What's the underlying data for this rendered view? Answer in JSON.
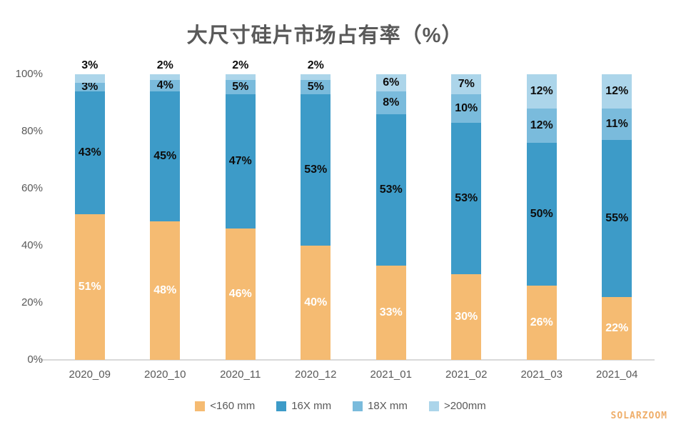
{
  "title": "大尺寸硅片市场占有率（%）",
  "watermark": "SOLARZOOM",
  "chart_data": {
    "type": "bar",
    "stacked": true,
    "title": "大尺寸硅片市场占有率（%）",
    "categories": [
      "2020_09",
      "2020_10",
      "2020_11",
      "2020_12",
      "2021_01",
      "2021_02",
      "2021_03",
      "2021_04"
    ],
    "series": [
      {
        "name": "<160 mm",
        "color": "#F5BB72",
        "label_color": "#FFFFFF",
        "values": [
          51,
          48,
          46,
          40,
          33,
          30,
          26,
          22
        ]
      },
      {
        "name": "16X mm",
        "color": "#3D9BC8",
        "label_color": "#0D0D0D",
        "values": [
          43,
          45,
          47,
          53,
          53,
          53,
          50,
          55
        ]
      },
      {
        "name": "18X mm",
        "color": "#7ABBDC",
        "label_color": "#0D0D0D",
        "values": [
          3,
          4,
          5,
          5,
          8,
          10,
          12,
          11
        ]
      },
      {
        "name": ">200mm",
        "color": "#ACD5EA",
        "label_color": "#0D0D0D",
        "values": [
          3,
          2,
          2,
          2,
          6,
          7,
          12,
          12
        ]
      }
    ],
    "y_ticks": [
      "0%",
      "20%",
      "40%",
      "60%",
      "80%",
      "100%"
    ],
    "ylim": [
      0,
      100
    ],
    "grid": false,
    "legend_position": "bottom",
    "data_label_format": "{value}%",
    "outside_label_threshold": 3
  },
  "colors": {
    "title_text": "#595959",
    "axis_text": "#595959",
    "axis_line": "#D9D9D9",
    "watermark_text": "#EFAE6A",
    "background": "#FFFFFF"
  }
}
